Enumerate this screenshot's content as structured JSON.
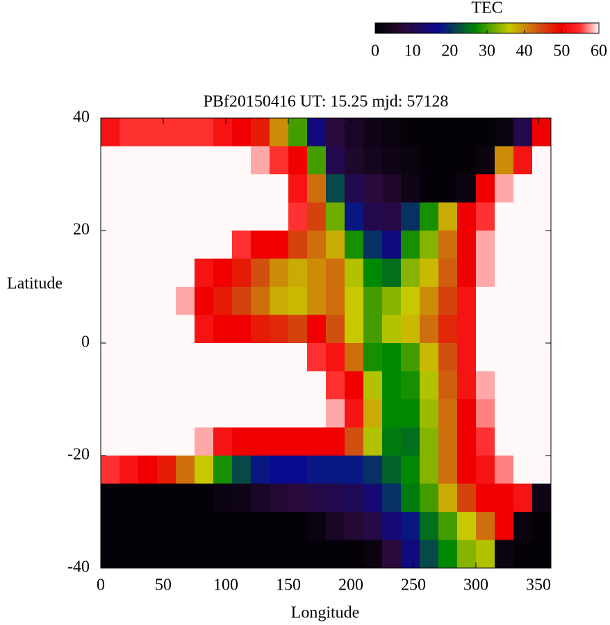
{
  "chart_data": {
    "type": "heatmap",
    "title": "PBf20150416  UT: 15.25  mjd: 57128",
    "xlabel": "Longitude",
    "ylabel": "Latitude",
    "x": [
      7.5,
      22.5,
      37.5,
      52.5,
      67.5,
      82.5,
      97.5,
      112.5,
      127.5,
      142.5,
      157.5,
      172.5,
      187.5,
      202.5,
      217.5,
      232.5,
      247.5,
      262.5,
      277.5,
      292.5,
      307.5,
      322.5,
      337.5,
      352.5
    ],
    "y": [
      37.5,
      32.5,
      27.5,
      22.5,
      17.5,
      12.5,
      7.5,
      2.5,
      -2.5,
      -7.5,
      -12.5,
      -17.5,
      -22.5,
      -27.5,
      -32.5,
      -37.5
    ],
    "z": [
      [
        52,
        55,
        55,
        55,
        55,
        55,
        52,
        50,
        48,
        40,
        30,
        15,
        8,
        5,
        3,
        2,
        1,
        1,
        1,
        1,
        1,
        2,
        10,
        50
      ],
      [
        60,
        60,
        60,
        60,
        60,
        60,
        60,
        60,
        58,
        55,
        50,
        30,
        10,
        6,
        4,
        3,
        2,
        1,
        1,
        1,
        2,
        40,
        52,
        60
      ],
      [
        60,
        60,
        60,
        60,
        60,
        60,
        60,
        60,
        60,
        60,
        52,
        42,
        22,
        10,
        8,
        6,
        3,
        1,
        1,
        2,
        50,
        58,
        60,
        60
      ],
      [
        60,
        60,
        60,
        60,
        60,
        60,
        60,
        60,
        60,
        60,
        55,
        45,
        32,
        18,
        10,
        9,
        20,
        28,
        38,
        50,
        55,
        60,
        60,
        60
      ],
      [
        60,
        60,
        60,
        60,
        60,
        60,
        60,
        55,
        50,
        50,
        45,
        42,
        38,
        28,
        20,
        15,
        28,
        33,
        42,
        50,
        58,
        60,
        60,
        60
      ],
      [
        60,
        60,
        60,
        60,
        60,
        52,
        50,
        48,
        44,
        40,
        38,
        40,
        42,
        35,
        27,
        25,
        33,
        37,
        43,
        50,
        58,
        60,
        60,
        60
      ],
      [
        60,
        60,
        60,
        60,
        58,
        50,
        48,
        45,
        42,
        38,
        37,
        40,
        42,
        36,
        30,
        33,
        36,
        40,
        45,
        52,
        60,
        60,
        60,
        60
      ],
      [
        60,
        60,
        60,
        60,
        60,
        52,
        50,
        50,
        48,
        47,
        45,
        50,
        44,
        36,
        30,
        35,
        37,
        42,
        47,
        52,
        60,
        60,
        60,
        60
      ],
      [
        60,
        60,
        60,
        60,
        60,
        60,
        60,
        60,
        60,
        60,
        60,
        55,
        52,
        42,
        28,
        27,
        30,
        37,
        44,
        52,
        60,
        60,
        60,
        60
      ],
      [
        60,
        60,
        60,
        60,
        60,
        60,
        60,
        60,
        60,
        60,
        60,
        60,
        55,
        50,
        35,
        27,
        28,
        35,
        43,
        52,
        58,
        60,
        60,
        60
      ],
      [
        60,
        60,
        60,
        60,
        60,
        60,
        60,
        60,
        60,
        60,
        60,
        60,
        58,
        52,
        38,
        27,
        27,
        34,
        42,
        50,
        57,
        60,
        60,
        60
      ],
      [
        60,
        60,
        60,
        60,
        60,
        58,
        52,
        50,
        50,
        50,
        50,
        50,
        50,
        44,
        35,
        26,
        25,
        33,
        42,
        50,
        55,
        60,
        60,
        60
      ],
      [
        55,
        52,
        50,
        48,
        42,
        36,
        28,
        22,
        18,
        17,
        17,
        18,
        18,
        18,
        20,
        24,
        27,
        33,
        42,
        50,
        52,
        57,
        60,
        60
      ],
      [
        1,
        1,
        1,
        1,
        1,
        1,
        2,
        3,
        5,
        7,
        8,
        9,
        10,
        11,
        14,
        20,
        26,
        30,
        38,
        45,
        50,
        50,
        52,
        3
      ],
      [
        1,
        1,
        1,
        1,
        1,
        1,
        1,
        1,
        1,
        1,
        1,
        2,
        5,
        7,
        9,
        14,
        18,
        25,
        30,
        36,
        42,
        50,
        2,
        1
      ],
      [
        1,
        1,
        1,
        1,
        1,
        1,
        1,
        1,
        1,
        1,
        1,
        1,
        1,
        1,
        2,
        8,
        15,
        22,
        27,
        33,
        35,
        2,
        1,
        1
      ]
    ],
    "xlim": [
      0,
      360
    ],
    "xticks": [
      0,
      50,
      100,
      150,
      200,
      250,
      300,
      350
    ],
    "ylim": [
      -40,
      40
    ],
    "yticks": [
      -40,
      -20,
      0,
      20,
      40
    ],
    "colorbar": {
      "label": "TEC",
      "clim": [
        0,
        60
      ],
      "ticks": [
        0,
        10,
        20,
        30,
        40,
        50,
        60
      ],
      "colormap": [
        [
          0,
          "#000000"
        ],
        [
          8,
          "#2a0a3c"
        ],
        [
          17,
          "#0a0a90"
        ],
        [
          27,
          "#008800"
        ],
        [
          36,
          "#c8c800"
        ],
        [
          44,
          "#d05010"
        ],
        [
          50,
          "#f00000"
        ],
        [
          55,
          "#ff3030"
        ],
        [
          60,
          "#fff8f8"
        ]
      ]
    }
  }
}
